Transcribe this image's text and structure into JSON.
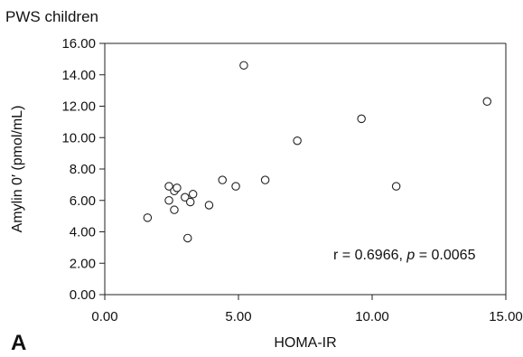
{
  "title": "PWS children",
  "panel_label": "A",
  "chart_data": {
    "type": "scatter",
    "xlabel": "HOMA-IR",
    "ylabel": "Amylin 0′ (pmol/mL)",
    "xlim": [
      0,
      15
    ],
    "ylim": [
      0,
      16
    ],
    "x_ticks": [
      "0.00",
      "5.00",
      "10.00",
      "15.00"
    ],
    "y_ticks": [
      "0.00",
      "2.00",
      "4.00",
      "6.00",
      "8.00",
      "10.00",
      "12.00",
      "14.00",
      "16.00"
    ],
    "grid": false,
    "annotation": {
      "r_text": "r = 0.6966, ",
      "p_symbol": "p",
      "p_text": " = 0.0065"
    },
    "points": [
      {
        "x": 1.6,
        "y": 4.9
      },
      {
        "x": 2.4,
        "y": 6.9
      },
      {
        "x": 2.4,
        "y": 6.0
      },
      {
        "x": 2.6,
        "y": 6.6
      },
      {
        "x": 2.7,
        "y": 6.8
      },
      {
        "x": 2.6,
        "y": 5.4
      },
      {
        "x": 3.0,
        "y": 6.2
      },
      {
        "x": 3.1,
        "y": 3.6
      },
      {
        "x": 3.2,
        "y": 5.9
      },
      {
        "x": 3.3,
        "y": 6.4
      },
      {
        "x": 3.9,
        "y": 5.7
      },
      {
        "x": 4.4,
        "y": 7.3
      },
      {
        "x": 4.9,
        "y": 6.9
      },
      {
        "x": 5.2,
        "y": 14.6
      },
      {
        "x": 6.0,
        "y": 7.3
      },
      {
        "x": 7.2,
        "y": 9.8
      },
      {
        "x": 9.6,
        "y": 11.2
      },
      {
        "x": 10.9,
        "y": 6.9
      },
      {
        "x": 14.3,
        "y": 12.3
      }
    ]
  }
}
